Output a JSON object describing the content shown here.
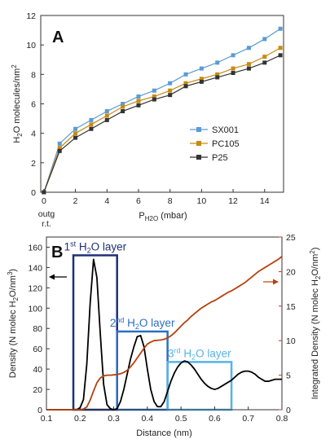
{
  "chart_data": [
    {
      "panel": "A",
      "type": "line",
      "xlabel_main": "P",
      "xlabel_sub": "H2O",
      "xlabel_unit": " (mbar)",
      "ylabel": "H2O molecules/nm2",
      "xlim": [
        -0.2,
        15.2
      ],
      "ylim": [
        0,
        12
      ],
      "xticks": [
        0,
        2,
        4,
        6,
        8,
        10,
        12,
        14
      ],
      "yticks": [
        0,
        2,
        4,
        6,
        8,
        10,
        12
      ],
      "x_extra_labels": [
        "outg",
        "r.t."
      ],
      "legend_position": "right-middle",
      "series": [
        {
          "name": "SX001",
          "color": "#5b9bd5",
          "x": [
            0,
            1,
            2,
            3,
            4,
            5,
            6,
            7,
            8,
            9,
            10,
            11,
            12,
            13,
            14,
            15
          ],
          "y": [
            0,
            3.3,
            4.3,
            4.9,
            5.5,
            6.0,
            6.5,
            6.9,
            7.4,
            8.0,
            8.4,
            8.8,
            9.3,
            9.8,
            10.4,
            11.1
          ]
        },
        {
          "name": "PC105",
          "color": "#c88a12",
          "x": [
            0,
            1,
            2,
            3,
            4,
            5,
            6,
            7,
            8,
            9,
            10,
            11,
            12,
            13,
            14,
            15
          ],
          "y": [
            0,
            3.0,
            4.0,
            4.6,
            5.2,
            5.8,
            6.2,
            6.5,
            6.9,
            7.4,
            7.7,
            8.0,
            8.4,
            8.7,
            9.2,
            9.8
          ]
        },
        {
          "name": "P25",
          "color": "#333333",
          "x": [
            0,
            1,
            2,
            3,
            4,
            5,
            6,
            7,
            8,
            9,
            10,
            11,
            12,
            13,
            14,
            15
          ],
          "y": [
            0,
            2.8,
            3.7,
            4.3,
            4.9,
            5.5,
            5.9,
            6.3,
            6.6,
            7.2,
            7.5,
            7.8,
            8.1,
            8.4,
            8.8,
            9.3
          ]
        }
      ]
    },
    {
      "panel": "B",
      "type": "line",
      "xlabel": "Distance (nm)",
      "ylabel_left": "Density (N molec H2O/nm3)",
      "ylabel_right": "Integrated Density (N molec H2O/nm2)",
      "xlim": [
        0.1,
        0.8
      ],
      "ylim_left": [
        0,
        170
      ],
      "ylim_right": [
        0,
        25
      ],
      "xticks": [
        0.1,
        0.2,
        0.3,
        0.4,
        0.5,
        0.6,
        0.7,
        0.8
      ],
      "yticks_left": [
        0,
        20,
        40,
        60,
        80,
        100,
        120,
        140,
        160
      ],
      "yticks_right": [
        0,
        5,
        10,
        15,
        20,
        25
      ],
      "series": [
        {
          "axis": "left",
          "color": "#000000",
          "x": [
            0.1,
            0.15,
            0.19,
            0.2,
            0.21,
            0.22,
            0.23,
            0.24,
            0.25,
            0.26,
            0.27,
            0.28,
            0.29,
            0.3,
            0.31,
            0.32,
            0.33,
            0.34,
            0.35,
            0.36,
            0.37,
            0.38,
            0.39,
            0.4,
            0.41,
            0.42,
            0.43,
            0.44,
            0.45,
            0.46,
            0.47,
            0.48,
            0.49,
            0.5,
            0.51,
            0.52,
            0.53,
            0.54,
            0.55,
            0.56,
            0.57,
            0.58,
            0.59,
            0.6,
            0.61,
            0.62,
            0.63,
            0.64,
            0.65,
            0.66,
            0.67,
            0.68,
            0.69,
            0.7,
            0.71,
            0.72,
            0.73,
            0.74,
            0.75,
            0.76,
            0.77,
            0.78,
            0.79,
            0.8
          ],
          "y": [
            0,
            0,
            0,
            2,
            10,
            45,
            105,
            148,
            130,
            75,
            25,
            5,
            1,
            0,
            1,
            8,
            20,
            35,
            50,
            62,
            72,
            73,
            62,
            40,
            20,
            8,
            3,
            3,
            8,
            18,
            28,
            36,
            42,
            46,
            48,
            47,
            44,
            40,
            35,
            30,
            26,
            23,
            21,
            20,
            21,
            23,
            25,
            27,
            29,
            32,
            35,
            37,
            38,
            38,
            37,
            35,
            32,
            30,
            28,
            28,
            29,
            30,
            30,
            30
          ]
        },
        {
          "axis": "right",
          "color": "#b7410e",
          "x": [
            0.1,
            0.2,
            0.21,
            0.22,
            0.23,
            0.24,
            0.25,
            0.26,
            0.27,
            0.28,
            0.29,
            0.3,
            0.31,
            0.32,
            0.33,
            0.34,
            0.35,
            0.36,
            0.37,
            0.38,
            0.39,
            0.4,
            0.41,
            0.42,
            0.43,
            0.44,
            0.45,
            0.46,
            0.47,
            0.48,
            0.49,
            0.5,
            0.51,
            0.52,
            0.53,
            0.54,
            0.55,
            0.56,
            0.57,
            0.58,
            0.59,
            0.6,
            0.61,
            0.62,
            0.63,
            0.64,
            0.65,
            0.66,
            0.67,
            0.68,
            0.69,
            0.7,
            0.71,
            0.72,
            0.73,
            0.74,
            0.75,
            0.76,
            0.77,
            0.78,
            0.79,
            0.8
          ],
          "y": [
            0,
            0,
            0.1,
            0.4,
            1.4,
            2.7,
            3.9,
            4.6,
            4.9,
            5.0,
            5.0,
            5.05,
            5.1,
            5.2,
            5.4,
            5.7,
            6.2,
            6.8,
            7.5,
            8.2,
            8.9,
            9.5,
            9.8,
            10.0,
            10.05,
            10.1,
            10.2,
            10.4,
            10.7,
            11.1,
            11.6,
            12.1,
            12.6,
            13.0,
            13.5,
            13.9,
            14.3,
            14.7,
            15.0,
            15.3,
            15.6,
            15.8,
            16.1,
            16.4,
            16.7,
            17.0,
            17.2,
            17.5,
            17.8,
            18.1,
            18.4,
            18.8,
            19.2,
            19.6,
            20.0,
            20.3,
            20.6,
            20.9,
            21.2,
            21.5,
            21.8,
            22.2
          ]
        }
      ],
      "annotations": [
        {
          "name": "layer-1",
          "sup": "st",
          "ord": "1",
          "rest_pre": " H",
          "sub": "2",
          "rest_post": "O layer",
          "x0": 0.18,
          "x1": 0.31,
          "y0": 0,
          "y1": 152,
          "color": "#1f2f7a"
        },
        {
          "name": "layer-2",
          "sup": "nd",
          "ord": "2",
          "rest_pre": " H",
          "sub": "2",
          "rest_post": "O layer",
          "x0": 0.31,
          "x1": 0.46,
          "y0": 0,
          "y1": 77,
          "color": "#2d6fc2"
        },
        {
          "name": "layer-3",
          "sup": "rd",
          "ord": "3",
          "rest_pre": " H",
          "sub": "2",
          "rest_post": "O layer",
          "x0": 0.46,
          "x1": 0.65,
          "y0": 0,
          "y1": 47,
          "color": "#56b3e8"
        }
      ]
    }
  ]
}
